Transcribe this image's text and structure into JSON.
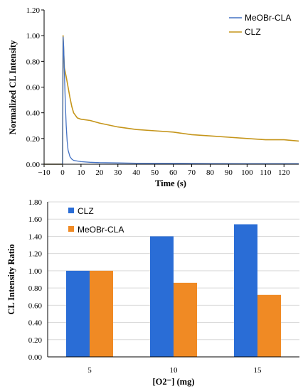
{
  "chart_data": [
    {
      "type": "line",
      "xlabel": "Time (s)",
      "ylabel": "Normalized CL Intensity",
      "xlim": [
        -10,
        128
      ],
      "ylim": [
        0,
        1.2
      ],
      "x_ticks": [
        "−10",
        "0",
        "10",
        "20",
        "30",
        "40",
        "50",
        "60",
        "70",
        "80",
        "90",
        "100",
        "110",
        "120"
      ],
      "y_ticks": [
        "0.00",
        "0.20",
        "0.40",
        "0.60",
        "0.80",
        "1.00",
        "1.20"
      ],
      "grid": false,
      "legend_position": "top-right",
      "series": [
        {
          "name": "MeOBr-CLA",
          "color": "#4472c4",
          "x": [
            -10,
            0,
            0.3,
            0.6,
            1,
            1.5,
            2,
            2.5,
            3,
            4,
            5,
            6,
            8,
            10,
            15,
            20,
            30,
            40,
            60,
            80,
            100,
            120,
            128
          ],
          "y": [
            0,
            0,
            0.99,
            0.92,
            0.72,
            0.48,
            0.3,
            0.18,
            0.11,
            0.06,
            0.04,
            0.03,
            0.025,
            0.02,
            0.015,
            0.012,
            0.01,
            0.008,
            0.006,
            0.005,
            0.004,
            0.004,
            0.004
          ]
        },
        {
          "name": "CLZ",
          "color": "#c5951a",
          "x": [
            -10,
            0,
            0.3,
            0.6,
            1,
            2,
            3,
            4,
            5,
            6,
            8,
            10,
            15,
            20,
            30,
            40,
            50,
            60,
            70,
            80,
            90,
            100,
            110,
            120,
            128
          ],
          "y": [
            0,
            0,
            1.0,
            0.88,
            0.75,
            0.68,
            0.6,
            0.52,
            0.45,
            0.4,
            0.36,
            0.35,
            0.34,
            0.32,
            0.29,
            0.27,
            0.26,
            0.25,
            0.23,
            0.22,
            0.21,
            0.2,
            0.19,
            0.19,
            0.18
          ]
        }
      ]
    },
    {
      "type": "bar",
      "xlabel": "[O2⁻] (mg)",
      "ylabel": "CL Intensity Ratio",
      "categories": [
        "5",
        "10",
        "15"
      ],
      "ylim": [
        0,
        1.8
      ],
      "y_ticks": [
        "0.00",
        "0.20",
        "0.40",
        "0.60",
        "0.80",
        "1.00",
        "1.20",
        "1.40",
        "1.60",
        "1.80"
      ],
      "grid": true,
      "legend_position": "top-left",
      "series": [
        {
          "name": "CLZ",
          "color": "#2a6dd6",
          "values": [
            1.0,
            1.4,
            1.54
          ]
        },
        {
          "name": "MeOBr-CLA",
          "color": "#f08a24",
          "values": [
            1.0,
            0.86,
            0.72
          ]
        }
      ]
    }
  ]
}
